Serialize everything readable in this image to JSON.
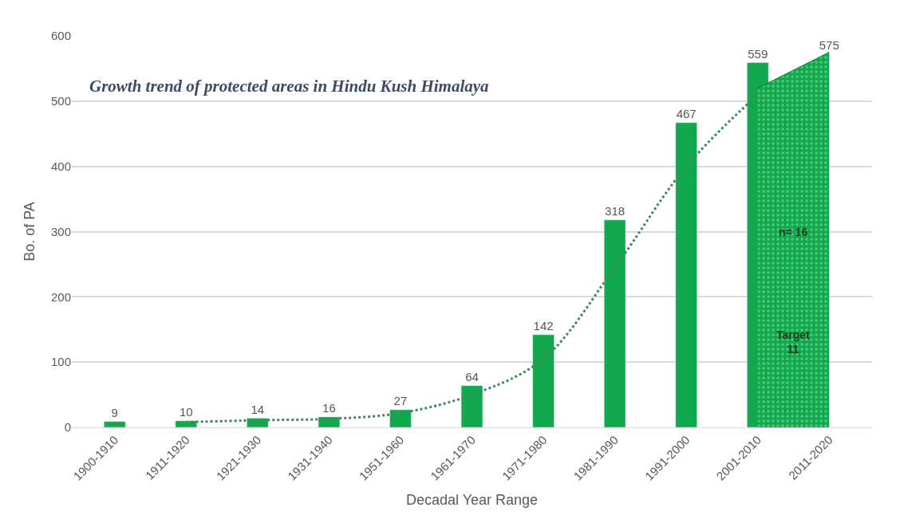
{
  "chart_data": {
    "type": "bar",
    "title": "Growth trend of protected areas in Hindu Kush Himalaya",
    "xlabel": "Decadal Year Range",
    "ylabel": "Bo. of PA",
    "categories": [
      "1900-1910",
      "1911-1920",
      "1921-1930",
      "1931-1940",
      "1951-1960",
      "1961-1970",
      "1971-1980",
      "1981-1990",
      "1991-2000",
      "2001-2010",
      "2011-2020"
    ],
    "series": [
      {
        "color": "#12a84e",
        "values": [
          9,
          10,
          14,
          16,
          27,
          64,
          142,
          318,
          467,
          559,
          null
        ],
        "value_labels": [
          "9",
          "10",
          "14",
          "16",
          "27",
          "64",
          "142",
          "318",
          "467",
          "559",
          null
        ]
      },
      {
        "type": "line",
        "color": "#3f8a5c",
        "line_style": "dotted",
        "values": [
          null,
          8,
          11,
          13,
          22,
          50,
          105,
          245,
          400,
          510,
          null
        ]
      },
      {
        "type": "area",
        "color": "#12a84e",
        "values": [
          null,
          null,
          null,
          null,
          null,
          null,
          null,
          null,
          null,
          520,
          575
        ],
        "value_labels": [
          null,
          null,
          null,
          null,
          null,
          null,
          null,
          null,
          null,
          null,
          "575"
        ]
      }
    ],
    "annotations": [
      "n= 16",
      "Target\n11"
    ],
    "ylim": [
      0,
      600
    ],
    "yticks": [
      0,
      100,
      200,
      300,
      400,
      500,
      600
    ],
    "grid": "y"
  }
}
